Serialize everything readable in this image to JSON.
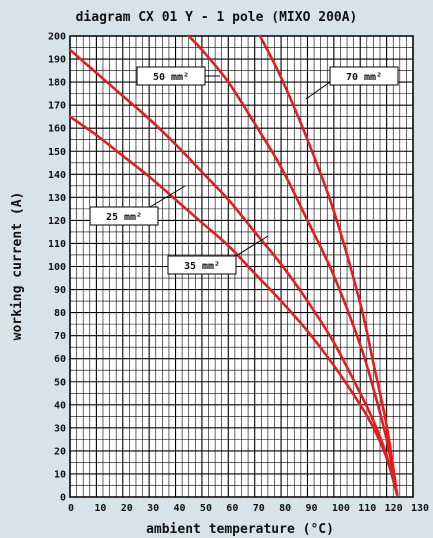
{
  "chart_data": {
    "type": "line",
    "title": "diagram CX 01 Y - 1 pole (MIXO 200A)",
    "xlabel": "ambient temperature (°C)",
    "ylabel": "working current (A)",
    "xlim": [
      0,
      130
    ],
    "ylim": [
      0,
      200
    ],
    "x_ticks": [
      0,
      10,
      20,
      30,
      40,
      50,
      60,
      70,
      80,
      90,
      100,
      110,
      120,
      130
    ],
    "y_ticks": [
      0,
      10,
      20,
      30,
      40,
      50,
      60,
      70,
      80,
      90,
      100,
      110,
      120,
      130,
      140,
      150,
      160,
      170,
      180,
      190,
      200
    ],
    "grid": true,
    "colors": {
      "background": "#d6e3ea",
      "plot_background": "#ffffff",
      "grid": "#000000",
      "series": "#e02020"
    },
    "series": [
      {
        "name": "25 mm²",
        "x": [
          0,
          10,
          20,
          30,
          40,
          50,
          60,
          70,
          80,
          90,
          100,
          110,
          115,
          120,
          124
        ],
        "y": [
          165,
          157,
          148,
          139,
          129,
          119,
          109,
          97,
          85,
          72,
          57,
          40,
          30,
          17,
          1
        ]
      },
      {
        "name": "35 mm²",
        "x": [
          0,
          10,
          20,
          30,
          40,
          50,
          60,
          70,
          80,
          90,
          100,
          110,
          115,
          120,
          124
        ],
        "y": [
          194,
          184,
          174,
          164,
          153,
          141,
          129,
          115,
          101,
          85,
          67,
          45,
          33,
          18,
          1
        ]
      },
      {
        "name": "50 mm²",
        "x": [
          45,
          50,
          60,
          70,
          80,
          90,
          100,
          110,
          115,
          120,
          124
        ],
        "y": [
          200,
          194,
          180,
          162,
          143,
          120,
          96,
          66,
          47,
          25,
          1
        ]
      },
      {
        "name": "70 mm²",
        "x": [
          72,
          80,
          90,
          100,
          110,
          115,
          120,
          124
        ],
        "y": [
          200,
          182,
          155,
          124,
          84,
          58,
          31,
          1
        ]
      }
    ]
  }
}
